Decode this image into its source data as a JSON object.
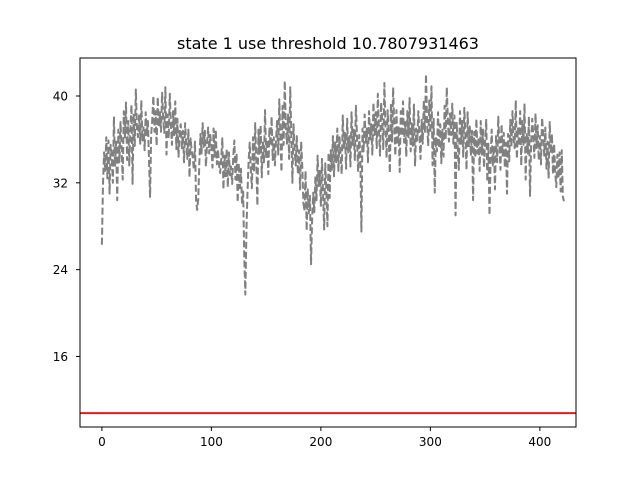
{
  "chart_data": {
    "type": "line",
    "title": "state 1 use threshold 10.7807931463",
    "xlabel": "",
    "ylabel": "",
    "xlim": [
      -20,
      433
    ],
    "ylim": [
      9.5,
      43.5
    ],
    "xticks": [
      0,
      100,
      200,
      300,
      400
    ],
    "yticks": [
      16,
      24,
      32,
      40
    ],
    "grid": false,
    "threshold": 10.7807931463,
    "threshold_color": "#e41a1c",
    "series": [
      {
        "color": "#808080",
        "style": "dashed",
        "x_start": 0,
        "x_step": 1,
        "y": [
          26.3,
          31.9,
          34.8,
          33.1,
          36.2,
          32.4,
          35.9,
          31.0,
          35.5,
          34.4,
          32.0,
          38.1,
          33.5,
          35.8,
          30.4,
          36.9,
          33.9,
          37.6,
          35.2,
          32.3,
          38.6,
          36.1,
          39.4,
          34.1,
          37.7,
          33.6,
          36.8,
          39.2,
          31.9,
          38.4,
          35.4,
          40.6,
          37.0,
          36.2,
          38.3,
          35.6,
          39.6,
          35.9,
          37.1,
          35.0,
          38.5,
          36.4,
          37.7,
          34.2,
          30.7,
          36.5,
          37.8,
          40.0,
          36.7,
          38.6,
          35.4,
          39.9,
          37.2,
          38.5,
          36.7,
          40.3,
          37.9,
          36.6,
          40.8,
          34.6,
          38.3,
          36.1,
          40.2,
          37.3,
          35.5,
          38.6,
          36.4,
          39.5,
          35.1,
          37.9,
          34.4,
          36.7,
          37.4,
          35.2,
          36.8,
          33.9,
          37.5,
          35.6,
          34.2,
          36.9,
          32.5,
          36.1,
          35.0,
          34.3,
          33.2,
          35.8,
          30.4,
          29.5,
          30.5,
          33.9,
          36.5,
          34.7,
          37.5,
          35.3,
          36.8,
          33.5,
          35.5,
          37.1,
          34.7,
          36.4,
          35.3,
          33.4,
          37.0,
          34.4,
          36.9,
          33.7,
          35.1,
          33.6,
          32.9,
          34.2,
          36.1,
          31.4,
          34.5,
          32.6,
          35.1,
          31.6,
          34.8,
          32.7,
          33.5,
          31.9,
          34.5,
          35.9,
          32.3,
          34.7,
          30.2,
          33.8,
          31.5,
          33.3,
          30.0,
          31.2,
          25.3,
          21.7,
          27.6,
          31.2,
          34.0,
          35.7,
          33.2,
          31.5,
          36.2,
          33.0,
          37.5,
          34.1,
          29.9,
          36.9,
          34.6,
          37.3,
          32.5,
          35.9,
          33.9,
          38.7,
          34.3,
          36.0,
          32.8,
          37.1,
          35.4,
          38.1,
          34.1,
          36.2,
          33.6,
          35.9,
          37.7,
          34.6,
          39.7,
          36.2,
          33.0,
          39.1,
          35.5,
          41.4,
          37.0,
          35.6,
          38.3,
          34.2,
          40.8,
          36.6,
          32.0,
          37.4,
          35.1,
          33.6,
          36.3,
          32.8,
          35.0,
          31.4,
          35.8,
          33.5,
          30.2,
          29.4,
          33.1,
          27.6,
          31.4,
          29.2,
          30.8,
          24.5,
          28.6,
          31.1,
          29.3,
          32.6,
          30.4,
          34.5,
          31.7,
          33.1,
          29.8,
          34.2,
          30.9,
          27.7,
          33.8,
          31.2,
          28.0,
          34.8,
          30.6,
          35.0,
          33.2,
          36.3,
          32.6,
          35.8,
          33.9,
          37.0,
          33.1,
          36.2,
          34.5,
          32.8,
          38.2,
          35.1,
          36.6,
          33.3,
          37.9,
          34.8,
          36.3,
          33.5,
          38.5,
          35.4,
          36.9,
          34.1,
          39.1,
          36.2,
          33.0,
          36.4,
          34.6,
          27.5,
          37.0,
          34.9,
          38.3,
          35.7,
          37.1,
          33.9,
          38.6,
          36.0,
          37.4,
          34.6,
          39.4,
          36.4,
          38.5,
          35.2,
          40.2,
          36.9,
          34.5,
          39.4,
          37.7,
          35.1,
          41.2,
          37.3,
          34.3,
          38.7,
          36.1,
          32.9,
          39.3,
          35.8,
          40.8,
          37.2,
          34.5,
          38.7,
          35.5,
          37.2,
          33.0,
          38.6,
          36.3,
          39.5,
          35.7,
          37.6,
          34.4,
          38.6,
          36.2,
          39.8,
          34.9,
          37.5,
          35.4,
          39.2,
          33.6,
          37.0,
          35.9,
          38.6,
          36.4,
          34.2,
          37.8,
          35.6,
          39.6,
          36.7,
          42.0,
          37.5,
          35.4,
          39.6,
          36.6,
          40.9,
          33.6,
          37.9,
          31.1,
          36.2,
          34.9,
          38.5,
          35.2,
          37.4,
          33.8,
          36.9,
          34.4,
          39.1,
          36.0,
          40.8,
          37.6,
          35.8,
          38.4,
          36.4,
          39.3,
          35.6,
          38.2,
          29.0,
          37.6,
          35.2,
          33.2,
          38.6,
          35.6,
          37.8,
          34.4,
          38.9,
          36.4,
          33.2,
          38.5,
          35.3,
          37.2,
          34.5,
          36.8,
          30.4,
          36.7,
          34.3,
          37.9,
          34.7,
          36.2,
          33.1,
          37.7,
          34.6,
          36.9,
          33.4,
          35.9,
          37.8,
          32.1,
          35.6,
          29.0,
          34.2,
          36.9,
          33.6,
          35.4,
          31.4,
          36.4,
          33.9,
          38.1,
          35.7,
          33.2,
          37.4,
          34.5,
          36.6,
          33.4,
          35.7,
          31.0,
          36.5,
          34.0,
          37.8,
          35.3,
          38.6,
          36.0,
          35.2,
          39.6,
          34.2,
          37.1,
          35.4,
          38.6,
          33.6,
          37.7,
          35.5,
          39.3,
          32.3,
          36.6,
          34.7,
          38.1,
          30.8,
          35.5,
          37.9,
          36.4,
          34.3,
          38.4,
          35.2,
          37.3,
          34.1,
          36.3,
          33.7,
          38.0,
          36.6,
          34.5,
          37.1,
          33.3,
          35.8,
          32.4,
          37.6,
          34.7,
          36.5,
          32.8,
          35.6,
          33.0,
          31.6,
          34.6,
          32.4,
          34.8,
          31.2,
          35.0,
          30.7,
          30.3
        ]
      }
    ]
  }
}
